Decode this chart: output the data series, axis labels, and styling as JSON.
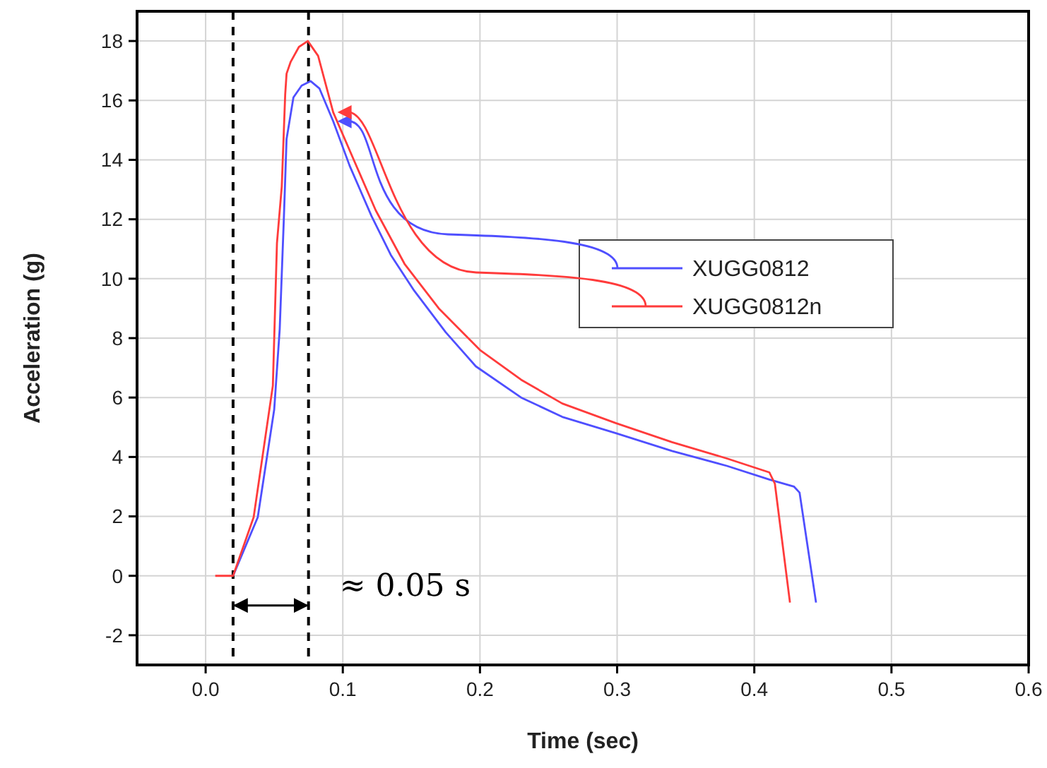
{
  "chart_data": {
    "type": "line",
    "xlabel": "Time (sec)",
    "ylabel": "Acceleration (g)",
    "xlim": [
      -0.05,
      0.6
    ],
    "ylim": [
      -3,
      19
    ],
    "xticks": [
      {
        "value": 0,
        "label": "0.0"
      },
      0.1,
      0.2,
      0.3,
      0.4,
      0.5,
      0.6
    ],
    "yticks": [
      -2,
      0,
      2,
      4,
      6,
      8,
      10,
      12,
      14,
      16,
      18
    ],
    "grid": true,
    "legend": "right",
    "line_style": "solid",
    "marker": "none",
    "ref_lines": [
      {
        "axis": "x",
        "value": 0.02,
        "color": "#000000",
        "line_style": "dashed"
      },
      {
        "axis": "x",
        "value": 0.075,
        "color": "#000000",
        "line_style": "dashed"
      }
    ],
    "annotations": [
      "≈ 0.05 s"
    ],
    "series": [
      {
        "name": "XUGG0812",
        "color": "#4f4fff",
        "x": [
          0.02,
          0.038,
          0.05,
          0.054,
          0.057,
          0.059,
          0.064,
          0.07,
          0.0765,
          0.083,
          0.093,
          0.105,
          0.121,
          0.135,
          0.152,
          0.175,
          0.197,
          0.23,
          0.26,
          0.299,
          0.34,
          0.38,
          0.411,
          0.429,
          0.433,
          0.445
        ],
        "values": [
          0,
          1.97,
          5.6,
          8.3,
          12,
          14.7,
          16.1,
          16.5,
          16.65,
          16.4,
          15.3,
          13.8,
          12.1,
          10.8,
          9.6,
          8.2,
          7.05,
          6.0,
          5.35,
          4.8,
          4.2,
          3.7,
          3.24,
          3.0,
          2.8,
          -0.9
        ]
      },
      {
        "name": "XUGG0812n",
        "color": "#ff3b3b",
        "x": [
          0.007,
          0.02,
          0.035,
          0.049,
          0.052,
          0.0555,
          0.058,
          0.059,
          0.062,
          0.068,
          0.0745,
          0.082,
          0.093,
          0.108,
          0.124,
          0.145,
          0.17,
          0.2,
          0.23,
          0.26,
          0.299,
          0.34,
          0.38,
          0.411,
          0.415,
          0.426
        ],
        "values": [
          0,
          0,
          1.97,
          6.4,
          11.2,
          13.1,
          16.2,
          16.9,
          17.3,
          17.8,
          18,
          17.5,
          15.6,
          14.0,
          12.3,
          10.5,
          9.0,
          7.6,
          6.6,
          5.8,
          5.14,
          4.5,
          3.95,
          3.48,
          3.1,
          -0.9
        ]
      }
    ]
  }
}
